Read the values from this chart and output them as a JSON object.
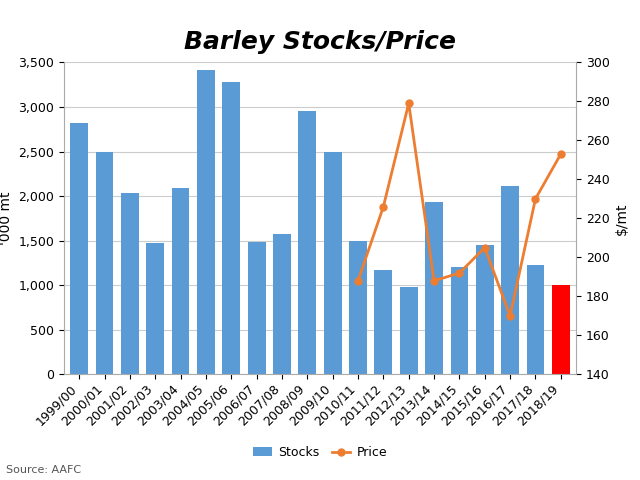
{
  "categories": [
    "1999/00",
    "2000/01",
    "2001/02",
    "2002/03",
    "2003/04",
    "2004/05",
    "2005/06",
    "2006/07",
    "2007/08",
    "2008/09",
    "2009/10",
    "2010/11",
    "2011/12",
    "2012/13",
    "2013/14",
    "2014/15",
    "2015/16",
    "2016/17",
    "2017/18",
    "2018/19"
  ],
  "stocks": [
    2820,
    2500,
    2040,
    1475,
    2090,
    3420,
    3280,
    1490,
    1575,
    2950,
    2490,
    1495,
    1175,
    975,
    1935,
    1200,
    1450,
    2110,
    1230,
    1000
  ],
  "bar_colors": [
    "#5B9BD5",
    "#5B9BD5",
    "#5B9BD5",
    "#5B9BD5",
    "#5B9BD5",
    "#5B9BD5",
    "#5B9BD5",
    "#5B9BD5",
    "#5B9BD5",
    "#5B9BD5",
    "#5B9BD5",
    "#5B9BD5",
    "#5B9BD5",
    "#5B9BD5",
    "#5B9BD5",
    "#5B9BD5",
    "#5B9BD5",
    "#5B9BD5",
    "#5B9BD5",
    "#FF0000"
  ],
  "price": [
    null,
    null,
    null,
    null,
    null,
    null,
    null,
    null,
    null,
    null,
    null,
    188,
    226,
    279,
    188,
    192,
    205,
    170,
    230,
    253
  ],
  "price_color": "#ED7D31",
  "title": "Barley Stocks/Price",
  "ylabel_left": "'000 mt",
  "ylabel_right": "$/mt",
  "ylim_left": [
    0,
    3500
  ],
  "ylim_right": [
    140,
    300
  ],
  "yticks_left": [
    0,
    500,
    1000,
    1500,
    2000,
    2500,
    3000,
    3500
  ],
  "yticks_right": [
    140,
    160,
    180,
    200,
    220,
    240,
    260,
    280,
    300
  ],
  "source": "Source: AAFC",
  "legend_stocks_label": "Stocks",
  "legend_price_label": "Price",
  "background_color": "#FFFFFF",
  "grid_color": "#CCCCCC",
  "title_fontsize": 18,
  "axis_fontsize": 10,
  "tick_fontsize": 9
}
